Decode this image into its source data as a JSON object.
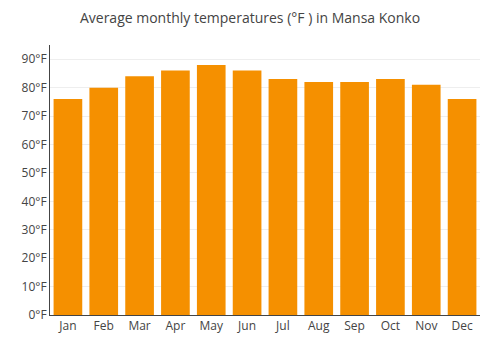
{
  "chart_data": {
    "type": "bar",
    "title": "Average monthly temperatures (°F ) in Mansa Konko",
    "categories": [
      "Jan",
      "Feb",
      "Mar",
      "Apr",
      "May",
      "Jun",
      "Jul",
      "Aug",
      "Sep",
      "Oct",
      "Nov",
      "Dec"
    ],
    "values": [
      76,
      80,
      84,
      86,
      88,
      86,
      83,
      82,
      82,
      83,
      81,
      76
    ],
    "color": "#F59000",
    "ylim": [
      0,
      95
    ],
    "yticks": [
      {
        "value": 0,
        "label": "0°F"
      },
      {
        "value": 10,
        "label": "10°F"
      },
      {
        "value": 20,
        "label": "20°F"
      },
      {
        "value": 30,
        "label": "30°F"
      },
      {
        "value": 40,
        "label": "40°F"
      },
      {
        "value": 50,
        "label": "50°F"
      },
      {
        "value": 60,
        "label": "60°F"
      },
      {
        "value": 70,
        "label": "70°F"
      },
      {
        "value": 80,
        "label": "80°F"
      },
      {
        "value": 90,
        "label": "90°F"
      }
    ],
    "grid": true
  }
}
